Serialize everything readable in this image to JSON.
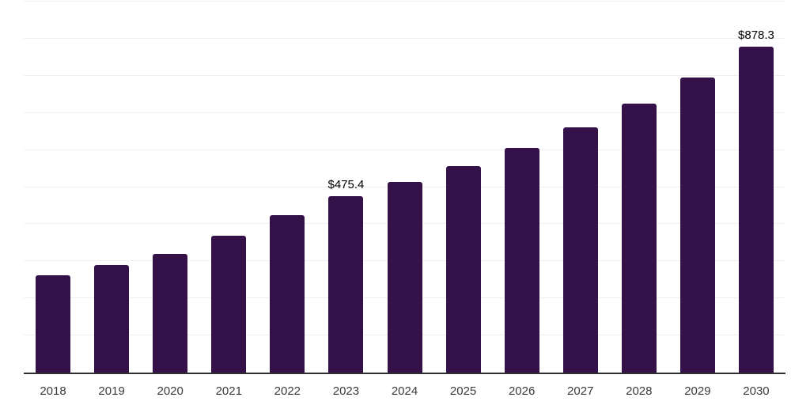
{
  "chart_data": {
    "type": "bar",
    "title": "",
    "xlabel": "",
    "ylabel": "",
    "categories": [
      "2018",
      "2019",
      "2020",
      "2021",
      "2022",
      "2023",
      "2024",
      "2025",
      "2026",
      "2027",
      "2028",
      "2029",
      "2030"
    ],
    "values": [
      262,
      289,
      319,
      368,
      425,
      475.4,
      514,
      556,
      605,
      660,
      724,
      795,
      878.3
    ],
    "data_labels": {
      "2023": "$475.4",
      "2030": "$878.3"
    },
    "ylim": [
      0,
      1000
    ],
    "gridline_step": 100,
    "grid": "horizontal",
    "y_tick_labels": "none",
    "legend": "none",
    "colors": {
      "bar": "#341249",
      "axis_line": "#2f2f33",
      "gridline": "#f0f0f3",
      "tick_label": "#3a3a3a",
      "data_label": "#000000",
      "background": "#ffffff"
    }
  }
}
